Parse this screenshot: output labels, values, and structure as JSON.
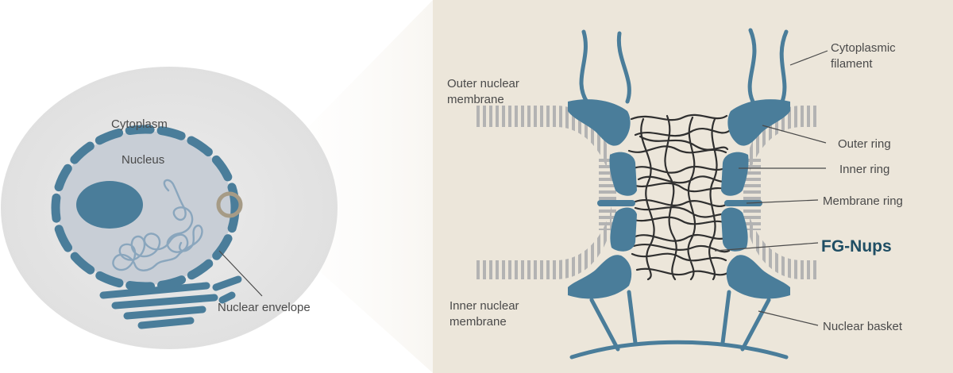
{
  "colors": {
    "panel_bg": "#ece6da",
    "cell_bg": "#e7e7e7",
    "nucleus_fill": "#c8ced6",
    "protein_blue": "#4a7d9a",
    "chromatin_blue": "#8aa6bd",
    "membrane_gray": "#b3b3b3",
    "fg_nups": "#2f2f2f",
    "highlight_ring": "#a69b86",
    "text": "#4a4a4a",
    "emphasis_text": "#1f4e64"
  },
  "cell": {
    "labels": {
      "cytoplasm": "Cytoplasm",
      "nucleus": "Nucleus",
      "nuclear_envelope": "Nuclear envelope"
    }
  },
  "pore": {
    "labels": {
      "outer_nuclear_membrane": [
        "Outer nuclear",
        "membrane"
      ],
      "inner_nuclear_membrane": [
        "Inner nuclear",
        "membrane"
      ],
      "cytoplasmic_filament": [
        "Cytoplasmic",
        "filament"
      ],
      "outer_ring": "Outer ring",
      "inner_ring": "Inner ring",
      "membrane_ring": "Membrane ring",
      "fg_nups": "FG-Nups",
      "nuclear_basket": "Nuclear basket"
    }
  }
}
